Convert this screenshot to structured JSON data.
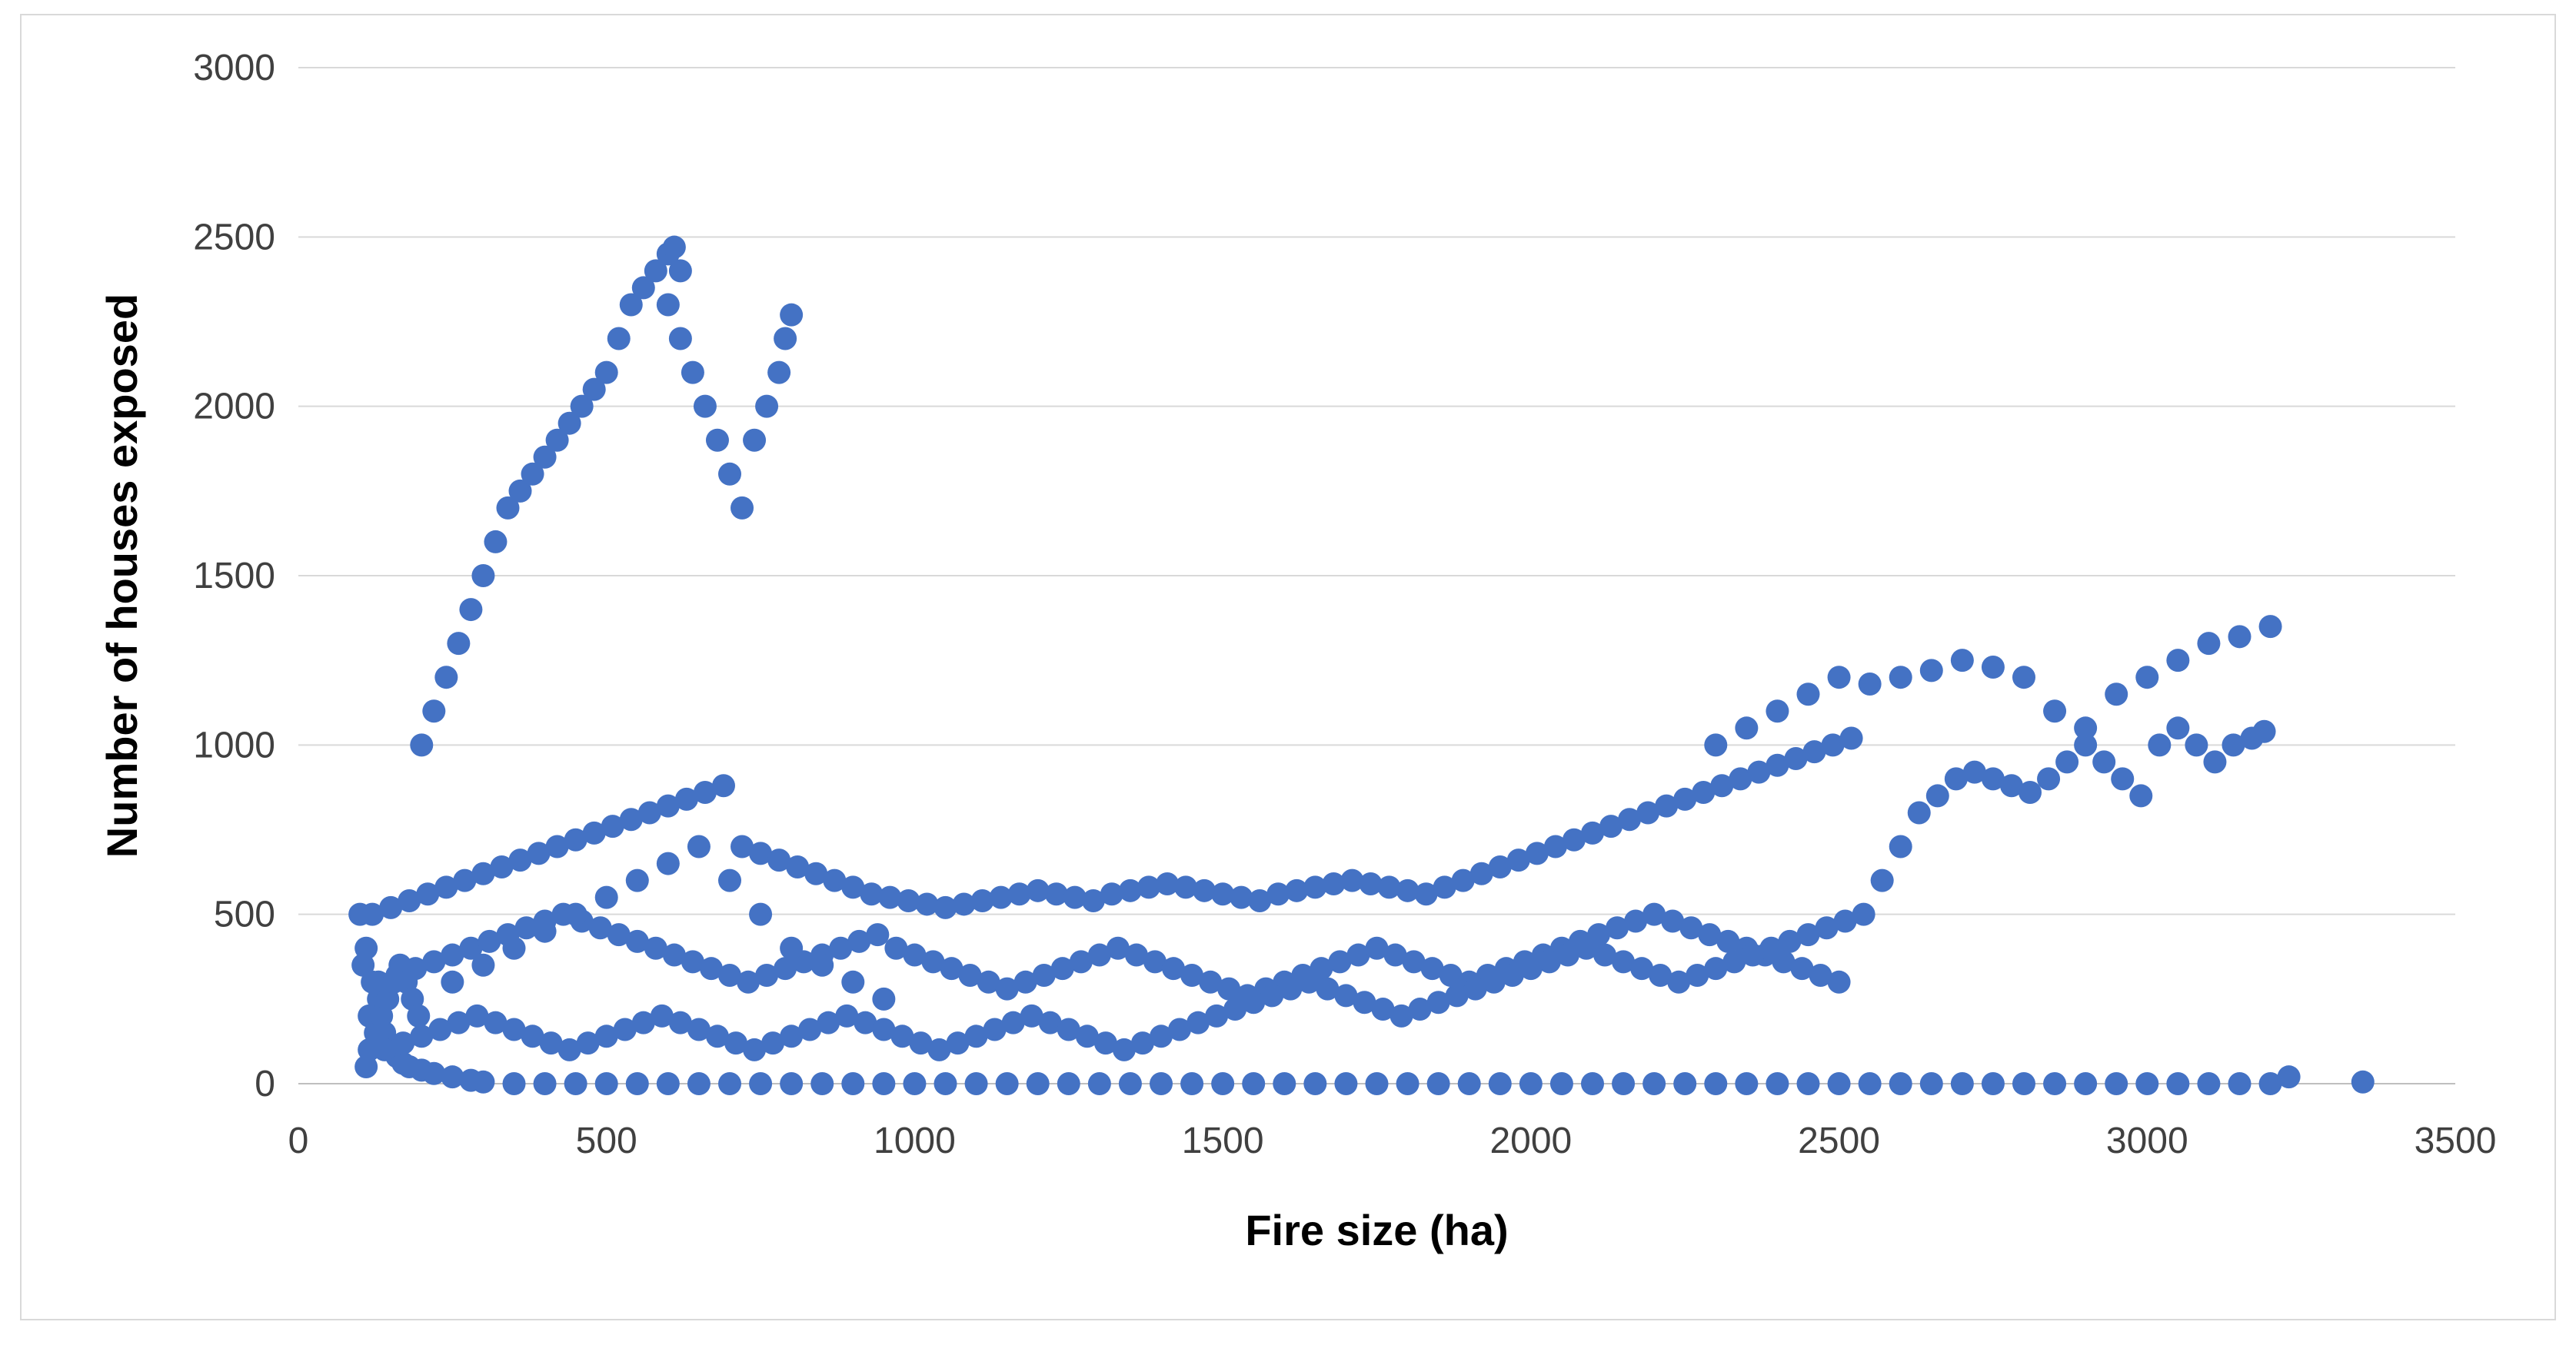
{
  "chart_data": {
    "type": "scatter",
    "title": "",
    "xlabel": "Fire size (ha)",
    "ylabel": "Number of houses exposed",
    "xlim": [
      0,
      3500
    ],
    "ylim": [
      0,
      3000
    ],
    "x_ticks": [
      0,
      500,
      1000,
      1500,
      2000,
      2500,
      3000,
      3500
    ],
    "y_ticks": [
      0,
      500,
      1000,
      1500,
      2000,
      2500,
      3000
    ],
    "x_tick_labels": [
      "0",
      "500",
      "1000",
      "1500",
      "2000",
      "2500",
      "3000",
      "3500"
    ],
    "y_tick_labels": [
      "0",
      "500",
      "1000",
      "1500",
      "2000",
      "2500",
      "3000"
    ],
    "grid": "horizontal",
    "legend": "none",
    "marker_color": "#4472C4",
    "gridline_color": "#d9d9d9",
    "series": [
      {
        "x": [
          100,
          110,
          105,
          120,
          130,
          115,
          140,
          150,
          160,
          170,
          180,
          200,
          220,
          250,
          280,
          300,
          350,
          400,
          450,
          500,
          550,
          600,
          650,
          700,
          750,
          800,
          850,
          900,
          950,
          1000,
          1050,
          1100,
          1150,
          1200,
          1250,
          1300,
          1350,
          1400,
          1450,
          1500,
          1550,
          1600,
          1650,
          1700,
          1750,
          1800,
          1850,
          1900,
          1950,
          2000,
          2050,
          2100,
          2150,
          2200,
          2250,
          2300,
          2350,
          2400,
          2450,
          2500,
          2550,
          2600,
          2650,
          2700,
          2750,
          2800,
          2850,
          2900,
          2950,
          3000,
          3050,
          3100,
          3150,
          3200,
          3230,
          3350,
          120,
          150,
          180,
          210,
          240,
          270,
          300,
          330,
          360,
          390,
          420,
          450,
          480,
          510,
          540,
          570,
          600,
          630,
          660,
          690,
          720,
          750,
          780,
          810,
          840,
          870,
          900,
          930,
          960,
          990,
          1020,
          1050,
          1080,
          1110,
          1140,
          1170,
          1200,
          1230,
          1260,
          1290,
          1320,
          1350,
          1380,
          1410,
          1440,
          1470,
          1500,
          1530,
          1560,
          1590,
          1620,
          1650,
          1680,
          1710,
          1740,
          1770,
          1800,
          1830,
          1860,
          1890,
          1920,
          1950,
          1980,
          2010,
          2040,
          2070,
          2100,
          2130,
          2160,
          2190,
          2220,
          2250,
          2280,
          2310,
          2340,
          2370,
          2400,
          2430,
          2460,
          2490,
          2520,
          130,
          160,
          190,
          220,
          250,
          280,
          310,
          340,
          370,
          400,
          430,
          460,
          490,
          520,
          550,
          580,
          610,
          640,
          670,
          700,
          730,
          760,
          790,
          820,
          850,
          880,
          910,
          940,
          970,
          1000,
          1030,
          1060,
          1090,
          1120,
          1150,
          1180,
          1210,
          1240,
          1270,
          1300,
          1330,
          1360,
          1390,
          1420,
          1450,
          1480,
          1510,
          1540,
          1570,
          1600,
          1630,
          1660,
          1690,
          1720,
          1750,
          1780,
          1810,
          1840,
          1870,
          1900,
          1930,
          1960,
          1990,
          2020,
          2050,
          2080,
          2110,
          2140,
          2170,
          2200,
          2230,
          2260,
          2290,
          2320,
          2350,
          2380,
          2410,
          2440,
          2470,
          2500,
          140,
          170,
          200,
          230,
          260,
          290,
          320,
          350,
          380,
          410,
          440,
          470,
          500,
          530,
          560,
          590,
          620,
          650,
          680,
          710,
          740,
          770,
          800,
          830,
          860,
          890,
          920,
          950,
          980,
          1010,
          1040,
          1070,
          1100,
          1130,
          1160,
          1190,
          1220,
          1250,
          1280,
          1310,
          1340,
          1370,
          1400,
          1430,
          1460,
          1490,
          1520,
          1550,
          1580,
          1610,
          1640,
          1670,
          1700,
          1730,
          1760,
          1790,
          1820,
          1850,
          1880,
          1910,
          1940,
          1970,
          2000,
          2030,
          2060,
          2090,
          2120,
          2150,
          2180,
          2210,
          2240,
          2270,
          2300,
          2330,
          2360,
          2390,
          2420,
          2450,
          2480,
          2510,
          2540,
          2570,
          2600,
          2630,
          2660,
          2690,
          2720,
          2750,
          2780,
          2810,
          2840,
          2870,
          2900,
          2930,
          2960,
          2990,
          3020,
          3050,
          3080,
          3110,
          3140,
          3170,
          3190,
          200,
          220,
          240,
          260,
          280,
          300,
          320,
          340,
          360,
          380,
          400,
          420,
          440,
          460,
          480,
          500,
          520,
          540,
          560,
          580,
          600,
          610,
          620,
          600,
          620,
          640,
          660,
          680,
          700,
          720,
          740,
          760,
          780,
          790,
          800,
          2300,
          2350,
          2400,
          2450,
          2500,
          2550,
          2600,
          2650,
          2700,
          2750,
          2800,
          2850,
          2900,
          2950,
          3000,
          3050,
          3100,
          3150,
          3200,
          250,
          300,
          350,
          400,
          450,
          500,
          550,
          600,
          650,
          700,
          750,
          800,
          850,
          900,
          950,
          110,
          115,
          125,
          135,
          145,
          155,
          165,
          175,
          185,
          195
        ],
        "y": [
          500,
          400,
          350,
          300,
          250,
          200,
          150,
          100,
          80,
          60,
          50,
          40,
          30,
          20,
          10,
          5,
          0,
          0,
          0,
          0,
          0,
          0,
          0,
          0,
          0,
          0,
          0,
          0,
          0,
          0,
          0,
          0,
          0,
          0,
          0,
          0,
          0,
          0,
          0,
          0,
          0,
          0,
          0,
          0,
          0,
          0,
          0,
          0,
          0,
          0,
          0,
          0,
          0,
          0,
          0,
          0,
          0,
          0,
          0,
          0,
          0,
          0,
          0,
          0,
          0,
          0,
          0,
          0,
          0,
          0,
          0,
          0,
          0,
          0,
          20,
          5,
          500,
          520,
          540,
          560,
          580,
          600,
          620,
          640,
          660,
          680,
          700,
          720,
          740,
          760,
          780,
          800,
          820,
          840,
          860,
          880,
          700,
          680,
          660,
          640,
          620,
          600,
          580,
          560,
          550,
          540,
          530,
          520,
          530,
          540,
          550,
          560,
          570,
          560,
          550,
          540,
          560,
          570,
          580,
          590,
          580,
          570,
          560,
          550,
          540,
          560,
          570,
          580,
          590,
          600,
          590,
          580,
          570,
          560,
          580,
          600,
          620,
          640,
          660,
          680,
          700,
          720,
          740,
          760,
          780,
          800,
          820,
          840,
          860,
          880,
          900,
          920,
          940,
          960,
          980,
          1000,
          1020,
          300,
          320,
          340,
          360,
          380,
          400,
          420,
          440,
          460,
          480,
          500,
          480,
          460,
          440,
          420,
          400,
          380,
          360,
          340,
          320,
          300,
          320,
          340,
          360,
          380,
          400,
          420,
          440,
          400,
          380,
          360,
          340,
          320,
          300,
          280,
          300,
          320,
          340,
          360,
          380,
          400,
          380,
          360,
          340,
          320,
          300,
          280,
          260,
          280,
          300,
          320,
          340,
          360,
          380,
          400,
          380,
          360,
          340,
          320,
          300,
          320,
          340,
          360,
          380,
          400,
          420,
          440,
          460,
          480,
          500,
          480,
          460,
          440,
          420,
          400,
          380,
          360,
          340,
          320,
          300,
          100,
          120,
          140,
          160,
          180,
          200,
          180,
          160,
          140,
          120,
          100,
          120,
          140,
          160,
          180,
          200,
          180,
          160,
          140,
          120,
          100,
          120,
          140,
          160,
          180,
          200,
          180,
          160,
          140,
          120,
          100,
          120,
          140,
          160,
          180,
          200,
          180,
          160,
          140,
          120,
          100,
          120,
          140,
          160,
          180,
          200,
          220,
          240,
          260,
          280,
          300,
          280,
          260,
          240,
          220,
          200,
          220,
          240,
          260,
          280,
          300,
          320,
          340,
          360,
          380,
          400,
          380,
          360,
          340,
          320,
          300,
          320,
          340,
          360,
          380,
          400,
          420,
          440,
          460,
          480,
          500,
          600,
          700,
          800,
          850,
          900,
          920,
          900,
          880,
          860,
          900,
          950,
          1000,
          950,
          900,
          850,
          1000,
          1050,
          1000,
          950,
          1000,
          1020,
          1040,
          1000,
          1100,
          1200,
          1300,
          1400,
          1500,
          1600,
          1700,
          1750,
          1800,
          1850,
          1900,
          1950,
          2000,
          2050,
          2100,
          2200,
          2300,
          2350,
          2400,
          2450,
          2470,
          2400,
          2300,
          2200,
          2100,
          2000,
          1900,
          1800,
          1700,
          1900,
          2000,
          2100,
          2200,
          2270,
          1000,
          1050,
          1100,
          1150,
          1200,
          1180,
          1200,
          1220,
          1250,
          1230,
          1200,
          1100,
          1050,
          1150,
          1200,
          1250,
          1300,
          1320,
          1350,
          300,
          350,
          400,
          450,
          500,
          550,
          600,
          650,
          700,
          600,
          500,
          400,
          350,
          300,
          250,
          50,
          100,
          150,
          200,
          250,
          300,
          350,
          300,
          250,
          200
        ]
      }
    ]
  }
}
